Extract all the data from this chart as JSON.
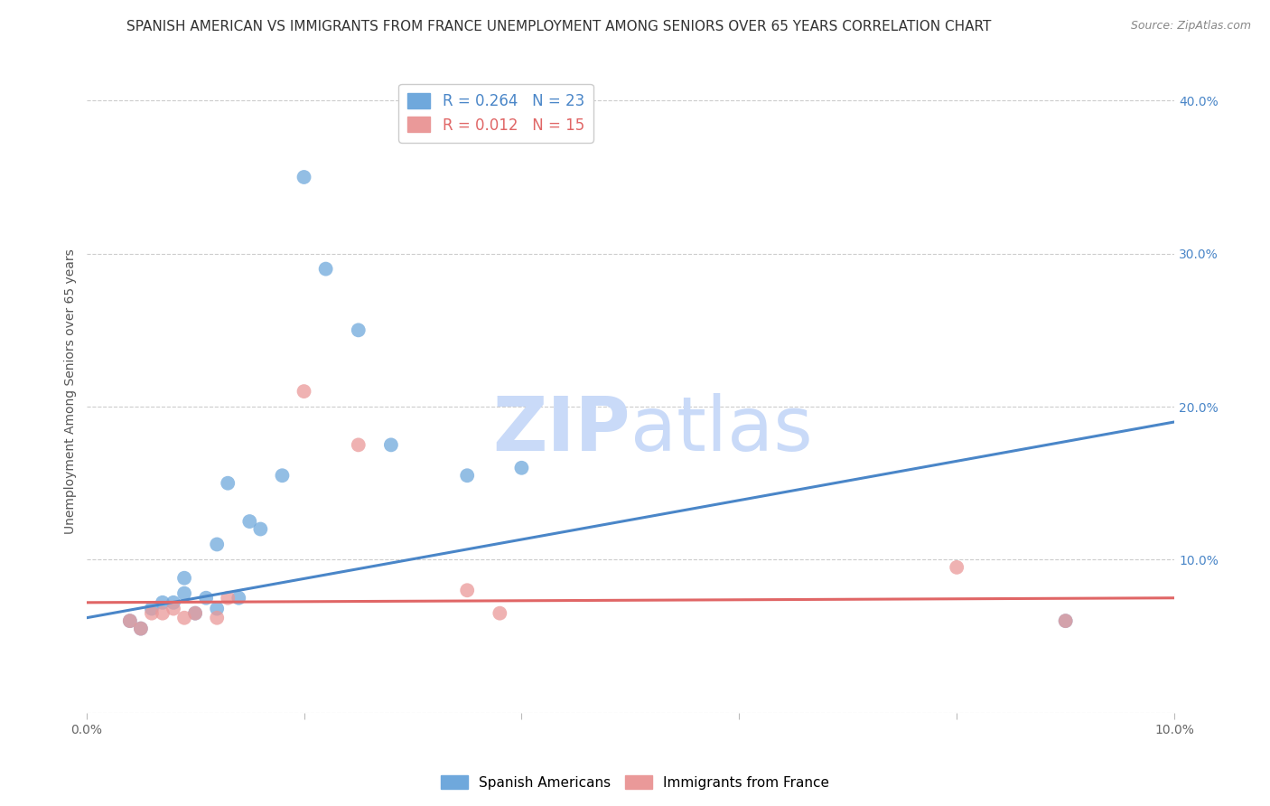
{
  "title": "SPANISH AMERICAN VS IMMIGRANTS FROM FRANCE UNEMPLOYMENT AMONG SENIORS OVER 65 YEARS CORRELATION CHART",
  "source": "Source: ZipAtlas.com",
  "ylabel": "Unemployment Among Seniors over 65 years",
  "xlim": [
    0.0,
    0.1
  ],
  "ylim": [
    0.0,
    0.42
  ],
  "x_ticks": [
    0.0,
    0.02,
    0.04,
    0.06,
    0.08,
    0.1
  ],
  "x_tick_labels": [
    "0.0%",
    "",
    "",
    "",
    "",
    "10.0%"
  ],
  "y_ticks": [
    0.0,
    0.1,
    0.2,
    0.3,
    0.4
  ],
  "y_tick_labels_right": [
    "",
    "10.0%",
    "20.0%",
    "30.0%",
    "40.0%"
  ],
  "legend_r_blue": "R = 0.264",
  "legend_n_blue": "N = 23",
  "legend_r_pink": "R = 0.012",
  "legend_n_pink": "N = 15",
  "blue_color": "#6fa8dc",
  "pink_color": "#ea9999",
  "blue_line_color": "#4a86c8",
  "pink_line_color": "#e06666",
  "watermark_zip": "ZIP",
  "watermark_atlas": "atlas",
  "blue_scatter_x": [
    0.004,
    0.005,
    0.006,
    0.007,
    0.008,
    0.009,
    0.009,
    0.01,
    0.011,
    0.012,
    0.012,
    0.013,
    0.014,
    0.015,
    0.016,
    0.018,
    0.02,
    0.022,
    0.025,
    0.028,
    0.035,
    0.04,
    0.09
  ],
  "blue_scatter_y": [
    0.06,
    0.055,
    0.068,
    0.072,
    0.072,
    0.078,
    0.088,
    0.065,
    0.075,
    0.068,
    0.11,
    0.15,
    0.075,
    0.125,
    0.12,
    0.155,
    0.35,
    0.29,
    0.25,
    0.175,
    0.155,
    0.16,
    0.06
  ],
  "pink_scatter_x": [
    0.004,
    0.005,
    0.006,
    0.007,
    0.008,
    0.009,
    0.01,
    0.012,
    0.013,
    0.02,
    0.025,
    0.035,
    0.038,
    0.08,
    0.09
  ],
  "pink_scatter_y": [
    0.06,
    0.055,
    0.065,
    0.065,
    0.068,
    0.062,
    0.065,
    0.062,
    0.075,
    0.21,
    0.175,
    0.08,
    0.065,
    0.095,
    0.06
  ],
  "blue_line_x": [
    0.0,
    0.1
  ],
  "blue_line_y": [
    0.062,
    0.19
  ],
  "pink_line_x": [
    0.0,
    0.1
  ],
  "pink_line_y": [
    0.072,
    0.075
  ],
  "background_color": "#ffffff",
  "grid_color": "#cccccc",
  "title_fontsize": 11,
  "label_fontsize": 10,
  "tick_fontsize": 10,
  "source_fontsize": 9,
  "marker_size": 130,
  "watermark_color_zip": "#c9daf8",
  "watermark_color_atlas": "#c9daf8",
  "watermark_fontsize": 60,
  "legend1_label_spanish": "Spanish Americans",
  "legend1_label_french": "Immigrants from France"
}
